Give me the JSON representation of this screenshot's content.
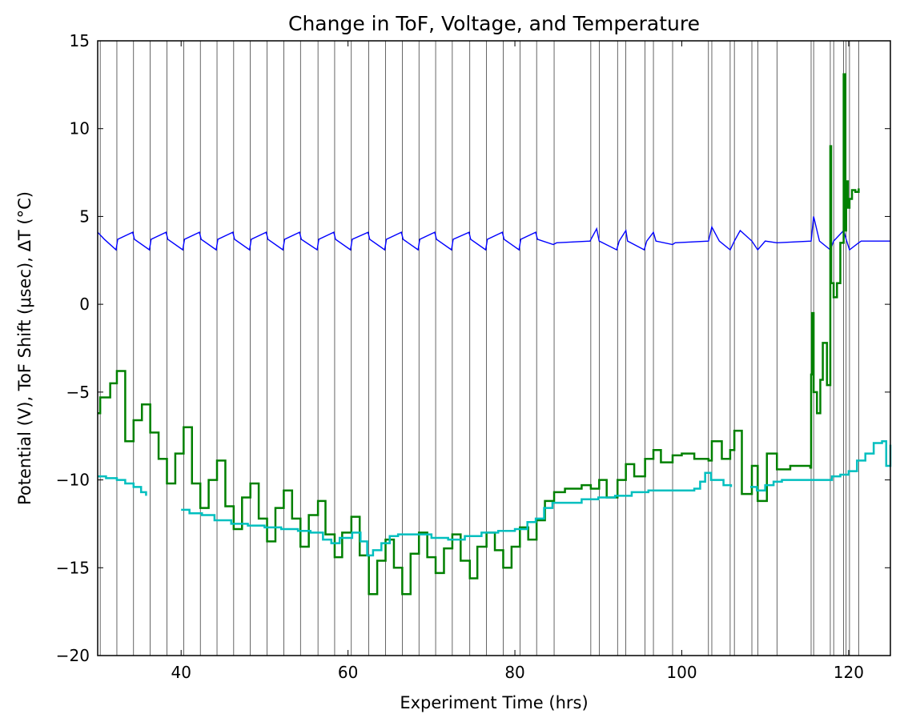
{
  "chart_data": {
    "type": "line",
    "title": "Change in ToF, Voltage, and Temperature",
    "xlabel": "Experiment Time (hrs)",
    "ylabel": "Potential (V), ToF Shift (μsec), ΔT (°C)",
    "xlim": [
      30,
      125
    ],
    "ylim": [
      -20,
      15
    ],
    "x_ticks": [
      40,
      60,
      80,
      100,
      120
    ],
    "y_ticks": [
      -20,
      -15,
      -10,
      -5,
      0,
      5,
      10,
      15
    ],
    "grid": false,
    "legend": "none",
    "vertical_lines_x": [
      30.3,
      32.3,
      34.3,
      36.3,
      38.3,
      40.3,
      42.3,
      44.3,
      46.3,
      48.3,
      50.3,
      52.3,
      54.3,
      56.4,
      58.4,
      60.4,
      62.5,
      64.5,
      66.5,
      68.5,
      70.5,
      72.5,
      74.6,
      76.6,
      78.6,
      80.6,
      82.6,
      84.7,
      89.1,
      90.1,
      92.3,
      93.3,
      95.6,
      96.6,
      98.9,
      103.2,
      103.6,
      105.8,
      106.3,
      108.4,
      109.1,
      111.4,
      115.5,
      115.8,
      117.8,
      118.2,
      119.4,
      119.7,
      120.1,
      121.2
    ],
    "series": [
      {
        "color": "#0000ff",
        "x": [
          30,
          30.8,
          32.2,
          32.4,
          34.2,
          34.4,
          36.2,
          36.4,
          38.2,
          38.4,
          40.2,
          40.4,
          42.2,
          42.4,
          44.2,
          44.4,
          46.2,
          46.4,
          48.2,
          48.4,
          50.2,
          50.4,
          52.2,
          52.4,
          54.2,
          54.4,
          56.3,
          56.5,
          58.3,
          58.5,
          60.3,
          60.5,
          62.4,
          62.6,
          64.4,
          64.6,
          66.4,
          66.6,
          68.4,
          68.6,
          70.4,
          70.6,
          72.4,
          72.6,
          74.5,
          74.7,
          76.5,
          76.7,
          78.5,
          78.7,
          80.5,
          80.7,
          82.5,
          82.7,
          84.6,
          85,
          89,
          89.8,
          90.1,
          92.2,
          92.5,
          93.3,
          93.5,
          95.5,
          95.8,
          96.6,
          96.9,
          98.9,
          99.2,
          103.2,
          103.6,
          104.5,
          105.8,
          106.3,
          107,
          108.4,
          109.1,
          110,
          111.4,
          115.5,
          115.8,
          116.5,
          117.8,
          118.2,
          119.4,
          119.7,
          120.1,
          121.2,
          121.5,
          125
        ],
        "y": [
          4.1,
          3.7,
          3.1,
          3.7,
          4.1,
          3.7,
          3.1,
          3.7,
          4.1,
          3.7,
          3.1,
          3.7,
          4.1,
          3.7,
          3.1,
          3.7,
          4.1,
          3.7,
          3.1,
          3.7,
          4.1,
          3.7,
          3.1,
          3.7,
          4.1,
          3.7,
          3.1,
          3.7,
          4.1,
          3.7,
          3.1,
          3.7,
          4.1,
          3.7,
          3.1,
          3.7,
          4.1,
          3.7,
          3.1,
          3.7,
          4.1,
          3.7,
          3.1,
          3.7,
          4.1,
          3.7,
          3.1,
          3.7,
          4.1,
          3.7,
          3.1,
          3.7,
          4.1,
          3.7,
          3.4,
          3.5,
          3.6,
          4.3,
          3.6,
          3.1,
          3.6,
          4.2,
          3.6,
          3.1,
          3.6,
          4.1,
          3.6,
          3.4,
          3.5,
          3.6,
          4.4,
          3.6,
          3.1,
          3.6,
          4.2,
          3.6,
          3.1,
          3.6,
          3.5,
          3.6,
          5.0,
          3.6,
          3.1,
          3.6,
          4.2,
          3.7,
          3.1,
          3.5,
          3.6,
          3.6
        ]
      },
      {
        "color": "#008000",
        "x": [
          30,
          30.3,
          31.5,
          32.3,
          33.3,
          34.3,
          35.3,
          36.3,
          37.3,
          38.3,
          39.3,
          40.3,
          41.3,
          42.3,
          43.3,
          44.3,
          45.3,
          46.3,
          47.3,
          48.3,
          49.3,
          50.3,
          51.3,
          52.3,
          53.3,
          54.3,
          55.3,
          56.4,
          57.3,
          58.4,
          59.3,
          60.4,
          61.4,
          62.5,
          63.5,
          64.5,
          65.5,
          66.5,
          67.5,
          68.5,
          69.5,
          70.5,
          71.5,
          72.5,
          73.5,
          74.6,
          75.5,
          76.6,
          77.6,
          78.6,
          79.6,
          80.6,
          81.6,
          82.6,
          83.6,
          84.7,
          86,
          88,
          89.1,
          90.1,
          91,
          92.3,
          93.3,
          94.3,
          95.6,
          96.6,
          97.5,
          98.9,
          100,
          101.5,
          103.2,
          103.6,
          104.8,
          105.8,
          106.3,
          107.2,
          108.4,
          109.1,
          110.2,
          111.4,
          113,
          115.4,
          115.5,
          115.6,
          115.8,
          116.2,
          116.6,
          116.9,
          117.4,
          117.8,
          117.9,
          118.2,
          118.6,
          119.0,
          119.4,
          119.6,
          119.7,
          119.9,
          120.1,
          120.4,
          120.8,
          121.2
        ],
        "y": [
          -6.2,
          -5.3,
          -4.5,
          -3.8,
          -7.8,
          -6.6,
          -5.7,
          -7.3,
          -8.8,
          -10.2,
          -8.5,
          -7.0,
          -10.2,
          -11.6,
          -10.0,
          -8.9,
          -11.5,
          -12.8,
          -11.0,
          -10.2,
          -12.2,
          -13.5,
          -11.6,
          -10.6,
          -12.2,
          -13.8,
          -12.0,
          -11.2,
          -13.1,
          -14.4,
          -13.0,
          -12.1,
          -14.3,
          -16.5,
          -14.6,
          -13.4,
          -15.0,
          -16.5,
          -14.2,
          -13.0,
          -14.4,
          -15.3,
          -13.9,
          -13.1,
          -14.6,
          -15.6,
          -13.8,
          -13.0,
          -14.0,
          -15.0,
          -13.8,
          -12.7,
          -13.4,
          -12.3,
          -11.2,
          -10.7,
          -10.5,
          -10.3,
          -10.5,
          -10.0,
          -11.0,
          -10.0,
          -9.1,
          -9.8,
          -8.8,
          -8.3,
          -9.0,
          -8.6,
          -8.5,
          -8.8,
          -8.9,
          -7.8,
          -8.8,
          -8.3,
          -7.2,
          -10.8,
          -9.2,
          -11.2,
          -8.5,
          -9.4,
          -9.2,
          -9.3,
          -4.0,
          -0.5,
          -5.0,
          -6.2,
          -4.3,
          -2.2,
          -4.6,
          9.0,
          1.2,
          0.4,
          1.2,
          3.5,
          13.1,
          4.2,
          7.0,
          5.5,
          6.0,
          6.5,
          6.4,
          6.6
        ]
      },
      {
        "color": "#00bfbf",
        "segments": [
          {
            "x": [
              30,
              31,
              32.3,
              33.3,
              34.3,
              35.2,
              35.8
            ],
            "y": [
              -9.8,
              -9.9,
              -10.0,
              -10.2,
              -10.4,
              -10.7,
              -10.9
            ]
          },
          {
            "x": [
              40,
              41,
              42.5,
              44,
              46,
              48,
              50,
              52,
              54,
              55.5,
              57,
              58,
              59,
              60.5,
              61.5,
              62.3,
              63,
              64,
              65,
              66,
              68,
              70,
              72,
              74,
              76,
              78,
              80,
              81.5,
              82.5,
              83.5,
              84.5,
              86,
              88,
              90,
              92,
              94,
              96,
              98,
              100,
              101.5,
              102.2,
              102.8,
              103.5,
              105,
              105.9
            ],
            "y": [
              -11.7,
              -11.9,
              -12.0,
              -12.3,
              -12.5,
              -12.6,
              -12.7,
              -12.8,
              -12.9,
              -13.0,
              -13.4,
              -13.6,
              -13.3,
              -13.0,
              -13.5,
              -14.3,
              -14.0,
              -13.6,
              -13.2,
              -13.1,
              -13.1,
              -13.3,
              -13.4,
              -13.2,
              -13.0,
              -12.9,
              -12.8,
              -12.4,
              -12.2,
              -11.6,
              -11.3,
              -11.3,
              -11.1,
              -11.0,
              -10.9,
              -10.7,
              -10.6,
              -10.6,
              -10.6,
              -10.5,
              -10.1,
              -9.6,
              -10.0,
              -10.3,
              -10.4
            ]
          },
          {
            "x": [
              108.2,
              109,
              110,
              111,
              112,
              114,
              116,
              118,
              119,
              120,
              121,
              122,
              123,
              124,
              124.5,
              125
            ],
            "y": [
              -10.4,
              -10.6,
              -10.3,
              -10.1,
              -10.0,
              -10.0,
              -10.0,
              -9.8,
              -9.7,
              -9.5,
              -8.9,
              -8.5,
              -7.9,
              -7.8,
              -9.2,
              -8.0
            ]
          }
        ]
      }
    ]
  }
}
